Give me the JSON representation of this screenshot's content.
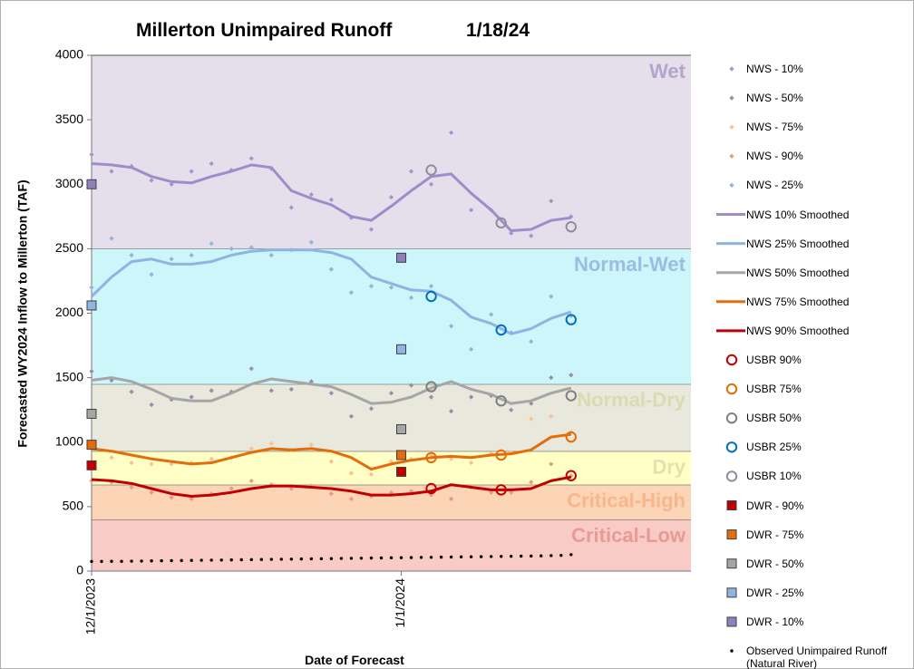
{
  "chart_data": {
    "type": "forecast",
    "title": "Millerton Unimpaired Runoff",
    "subtitle": "1/18/24",
    "x_label": "Date of Forecast",
    "y_label": "Forecasted WY2024 Inflow to Millerton (TAF)",
    "xlim": [
      "12/1/2023",
      "1/30/2024"
    ],
    "xticks": [
      "12/1/2023",
      "1/1/2024"
    ],
    "ylim": [
      0,
      4000
    ],
    "yticks": [
      0,
      500,
      1000,
      1500,
      2000,
      2500,
      3000,
      3500,
      4000
    ],
    "bands": [
      {
        "label": "Critical-Low",
        "from": 0,
        "to": 400,
        "color": "#f9cbc6",
        "label_color": "#e79a96"
      },
      {
        "label": "Critical-High",
        "from": 400,
        "to": 670,
        "color": "#fcd5b7",
        "label_color": "#f8b68c"
      },
      {
        "label": "Dry",
        "from": 670,
        "to": 930,
        "color": "#ffffc6",
        "label_color": "#e4e2ac"
      },
      {
        "label": "Normal-Dry",
        "from": 930,
        "to": 1450,
        "color": "#e8e8dc",
        "label_color": "#d9dcb2"
      },
      {
        "label": "Normal-Wet",
        "from": 1450,
        "to": 2500,
        "color": "#ccf6f9",
        "label_color": "#9cbde0"
      },
      {
        "label": "Wet",
        "from": 2500,
        "to": 4000,
        "color": "#e5dfec",
        "label_color": "#b5a4cc"
      }
    ],
    "x": [
      "12/1/2023",
      "12/3/2023",
      "12/5/2023",
      "12/7/2023",
      "12/9/2023",
      "12/11/2023",
      "12/13/2023",
      "12/15/2023",
      "12/17/2023",
      "12/19/2023",
      "12/21/2023",
      "12/23/2023",
      "12/25/2023",
      "12/27/2023",
      "12/29/2023",
      "12/31/2023",
      "1/2/2024",
      "1/4/2024",
      "1/6/2024",
      "1/8/2024",
      "1/10/2024",
      "1/12/2024",
      "1/14/2024",
      "1/16/2024",
      "1/18/2024"
    ],
    "series": [
      {
        "name": "NWS - 10%",
        "marker": "diamond",
        "color": "#a694c8",
        "values": [
          3230,
          3100,
          3140,
          3030,
          3000,
          3100,
          3160,
          3110,
          3200,
          3120,
          2820,
          2920,
          2880,
          2740,
          2650,
          2900,
          3100,
          3000,
          3400,
          2800,
          2800,
          2620,
          2600,
          2870,
          2750
        ]
      },
      {
        "name": "NWS - 50%",
        "marker": "diamond",
        "color": "#9a8ba8",
        "values": [
          1550,
          1480,
          1390,
          1290,
          1330,
          1350,
          1400,
          1390,
          1570,
          1400,
          1410,
          1470,
          1380,
          1200,
          1260,
          1380,
          1440,
          1350,
          1240,
          1350,
          1360,
          1250,
          1300,
          1500,
          1520
        ]
      },
      {
        "name": "NWS - 75%",
        "marker": "diamond",
        "color": "#fac090",
        "values": [
          960,
          880,
          840,
          830,
          830,
          840,
          870,
          880,
          950,
          990,
          940,
          980,
          850,
          760,
          750,
          850,
          870,
          900,
          870,
          840,
          910,
          920,
          1180,
          1200,
          1080
        ]
      },
      {
        "name": "NWS - 90%",
        "marker": "diamond",
        "color": "#e6988a",
        "values": [
          700,
          690,
          650,
          610,
          570,
          560,
          600,
          640,
          700,
          670,
          640,
          660,
          600,
          560,
          580,
          610,
          620,
          590,
          560,
          650,
          610,
          610,
          690,
          830,
          740
        ]
      },
      {
        "name": "NWS - 25%",
        "marker": "diamond",
        "color": "#95b3d7",
        "values": [
          2200,
          2580,
          2450,
          2300,
          2420,
          2450,
          2540,
          2500,
          2510,
          2450,
          2490,
          2550,
          2340,
          2160,
          2210,
          2200,
          2120,
          2210,
          1900,
          1720,
          1990,
          1850,
          1780,
          2130,
          1980
        ]
      },
      {
        "name": "NWS 10% Smoothed",
        "marker": "line",
        "color": "#a08cc8",
        "values": [
          3160,
          3150,
          3130,
          3060,
          3020,
          3010,
          3060,
          3100,
          3150,
          3130,
          2950,
          2890,
          2840,
          2750,
          2720,
          2830,
          2950,
          3060,
          3080,
          2930,
          2800,
          2640,
          2650,
          2720,
          2740
        ]
      },
      {
        "name": "NWS 25% Smoothed",
        "marker": "line",
        "color": "#8db4e2",
        "values": [
          2130,
          2280,
          2400,
          2420,
          2380,
          2380,
          2400,
          2450,
          2480,
          2490,
          2490,
          2490,
          2470,
          2420,
          2280,
          2230,
          2180,
          2170,
          2100,
          1970,
          1920,
          1840,
          1880,
          1960,
          2010
        ]
      },
      {
        "name": "NWS 50% Smoothed",
        "marker": "line",
        "color": "#a6a6a6",
        "values": [
          1480,
          1500,
          1470,
          1410,
          1340,
          1320,
          1320,
          1380,
          1450,
          1490,
          1470,
          1450,
          1430,
          1370,
          1300,
          1310,
          1350,
          1420,
          1470,
          1410,
          1370,
          1300,
          1320,
          1380,
          1420
        ]
      },
      {
        "name": "NWS 75% Smoothed",
        "marker": "line",
        "color": "#e46c0a",
        "values": [
          950,
          930,
          900,
          870,
          850,
          830,
          840,
          880,
          920,
          950,
          940,
          950,
          930,
          880,
          790,
          830,
          860,
          880,
          890,
          880,
          900,
          910,
          940,
          1040,
          1060
        ]
      },
      {
        "name": "NWS 90% Smoothed",
        "marker": "line",
        "color": "#c00000",
        "values": [
          710,
          700,
          680,
          640,
          600,
          580,
          590,
          610,
          640,
          660,
          660,
          650,
          640,
          620,
          590,
          590,
          600,
          620,
          670,
          650,
          630,
          630,
          640,
          700,
          730
        ]
      },
      {
        "name": "USBR 90%",
        "marker": "circle",
        "color": "#c00000",
        "x": [
          "1/4/2024",
          "1/11/2024",
          "1/18/2024"
        ],
        "values": [
          640,
          630,
          740
        ]
      },
      {
        "name": "USBR 75%",
        "marker": "circle",
        "color": "#e46c0a",
        "x": [
          "1/4/2024",
          "1/11/2024",
          "1/18/2024"
        ],
        "values": [
          880,
          900,
          1040
        ]
      },
      {
        "name": "USBR 50%",
        "marker": "circle",
        "color": "#808080",
        "x": [
          "1/4/2024",
          "1/11/2024",
          "1/18/2024"
        ],
        "values": [
          1430,
          1320,
          1360
        ]
      },
      {
        "name": "USBR 25%",
        "marker": "circle",
        "color": "#0070c0",
        "x": [
          "1/4/2024",
          "1/11/2024",
          "1/18/2024"
        ],
        "values": [
          2130,
          1870,
          1950
        ]
      },
      {
        "name": "USBR 10%",
        "marker": "circle",
        "color": "#8e8e9e",
        "x": [
          "1/4/2024",
          "1/11/2024",
          "1/18/2024"
        ],
        "values": [
          3110,
          2700,
          2670
        ]
      },
      {
        "name": "DWR - 90%",
        "marker": "square",
        "color": "#c00000",
        "x": [
          "12/1/2023",
          "1/1/2024"
        ],
        "values": [
          820,
          770
        ]
      },
      {
        "name": "DWR - 75%",
        "marker": "square",
        "color": "#e46c0a",
        "x": [
          "12/1/2023",
          "1/1/2024"
        ],
        "values": [
          980,
          900
        ]
      },
      {
        "name": "DWR - 50%",
        "marker": "square",
        "color": "#a6a6a6",
        "x": [
          "12/1/2023",
          "1/1/2024"
        ],
        "values": [
          1220,
          1100
        ]
      },
      {
        "name": "DWR - 25%",
        "marker": "square",
        "color": "#8eb4e3",
        "x": [
          "12/1/2023",
          "1/1/2024"
        ],
        "values": [
          2060,
          1720
        ]
      },
      {
        "name": "DWR - 10%",
        "marker": "square",
        "color": "#8f7fbf",
        "x": [
          "12/1/2023",
          "1/1/2024"
        ],
        "values": [
          3000,
          2430
        ]
      },
      {
        "name": "Observed Unimpaired Runoff (Natural River)",
        "marker": "dot",
        "color": "#000000",
        "x": [
          "12/1/2023",
          "12/2/2023",
          "12/3/2023",
          "12/4/2023",
          "12/5/2023",
          "12/6/2023",
          "12/7/2023",
          "12/8/2023",
          "12/9/2023",
          "12/10/2023",
          "12/11/2023",
          "12/12/2023",
          "12/13/2023",
          "12/14/2023",
          "12/15/2023",
          "12/16/2023",
          "12/17/2023",
          "12/18/2023",
          "12/19/2023",
          "12/20/2023",
          "12/21/2023",
          "12/22/2023",
          "12/23/2023",
          "12/24/2023",
          "12/25/2023",
          "12/26/2023",
          "12/27/2023",
          "12/28/2023",
          "12/29/2023",
          "12/30/2023",
          "12/31/2023",
          "1/1/2024",
          "1/2/2024",
          "1/3/2024",
          "1/4/2024",
          "1/5/2024",
          "1/6/2024",
          "1/7/2024",
          "1/8/2024",
          "1/9/2024",
          "1/10/2024",
          "1/11/2024",
          "1/12/2024",
          "1/13/2024",
          "1/14/2024",
          "1/15/2024",
          "1/16/2024",
          "1/17/2024",
          "1/18/2024"
        ],
        "values": [
          75,
          75,
          76,
          76,
          77,
          78,
          79,
          80,
          81,
          82,
          83,
          84,
          85,
          86,
          87,
          88,
          89,
          90,
          91,
          92,
          93,
          94,
          95,
          96,
          97,
          98,
          99,
          100,
          101,
          102,
          103,
          104,
          105,
          106,
          107,
          108,
          109,
          110,
          111,
          112,
          113,
          114,
          115,
          116,
          117,
          118,
          120,
          122,
          128
        ]
      }
    ]
  }
}
